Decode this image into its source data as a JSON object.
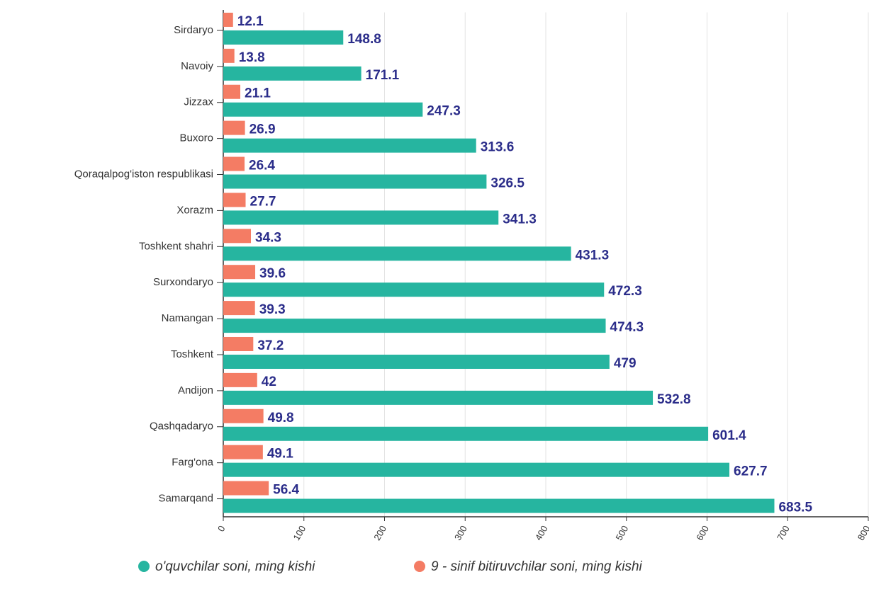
{
  "chart_data": {
    "type": "hbar",
    "categories": [
      "Sirdaryo",
      "Navoiy",
      "Jizzax",
      "Buxoro",
      "Qoraqalpog'iston respublikasi",
      "Xorazm",
      "Toshkent shahri",
      "Surxondaryo",
      "Namangan",
      "Toshkent",
      "Andijon",
      "Qashqadaryo",
      "Farg'ona",
      "Samarqand"
    ],
    "series": [
      {
        "name": "o'quvchilar soni, ming kishi",
        "color": "#26b5a0",
        "values": [
          148.8,
          171.1,
          247.3,
          313.6,
          326.5,
          341.3,
          431.3,
          472.3,
          474.3,
          479,
          532.8,
          601.4,
          627.7,
          683.5
        ]
      },
      {
        "name": "9 - sinif bitiruvchilar soni, ming kishi",
        "color": "#f47c64",
        "values": [
          12.1,
          13.8,
          21.1,
          26.9,
          26.4,
          27.7,
          34.3,
          39.6,
          39.3,
          37.2,
          42,
          49.8,
          49.1,
          56.4
        ]
      }
    ],
    "xlim": [
      0,
      800
    ],
    "xticks": [
      0,
      100,
      200,
      300,
      400,
      500,
      600,
      700,
      800
    ],
    "grid": true,
    "legend": "bottom"
  }
}
